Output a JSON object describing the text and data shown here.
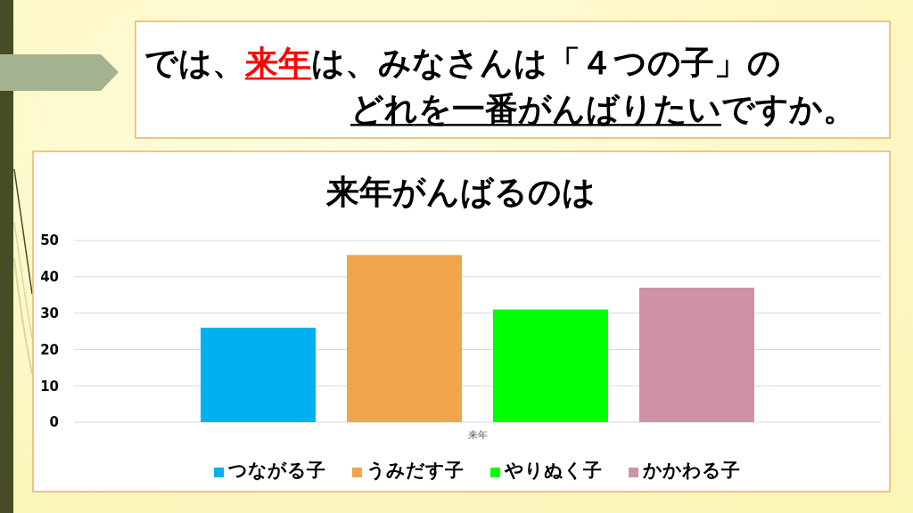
{
  "chart_data": {
    "type": "bar",
    "title": "来年がんばるのは",
    "annotations": [
      "では、来年は、みなさんは「４つの子」の",
      "どれを一番がんばりたいですか。"
    ],
    "categories": [
      "来年"
    ],
    "series": [
      {
        "name": "つながる子",
        "color": "#00b0f0",
        "values": [
          26
        ]
      },
      {
        "name": "うみだす子",
        "color": "#f0a54a",
        "values": [
          46
        ]
      },
      {
        "name": "やりぬく子",
        "color": "#00ff00",
        "values": [
          31
        ]
      },
      {
        "name": "かかわる子",
        "color": "#cf91a6",
        "values": [
          37
        ]
      }
    ],
    "ylim": [
      0,
      50
    ],
    "yticks": [
      0,
      10,
      20,
      30,
      40,
      50
    ],
    "grid": "y",
    "legend": "bottom"
  }
}
